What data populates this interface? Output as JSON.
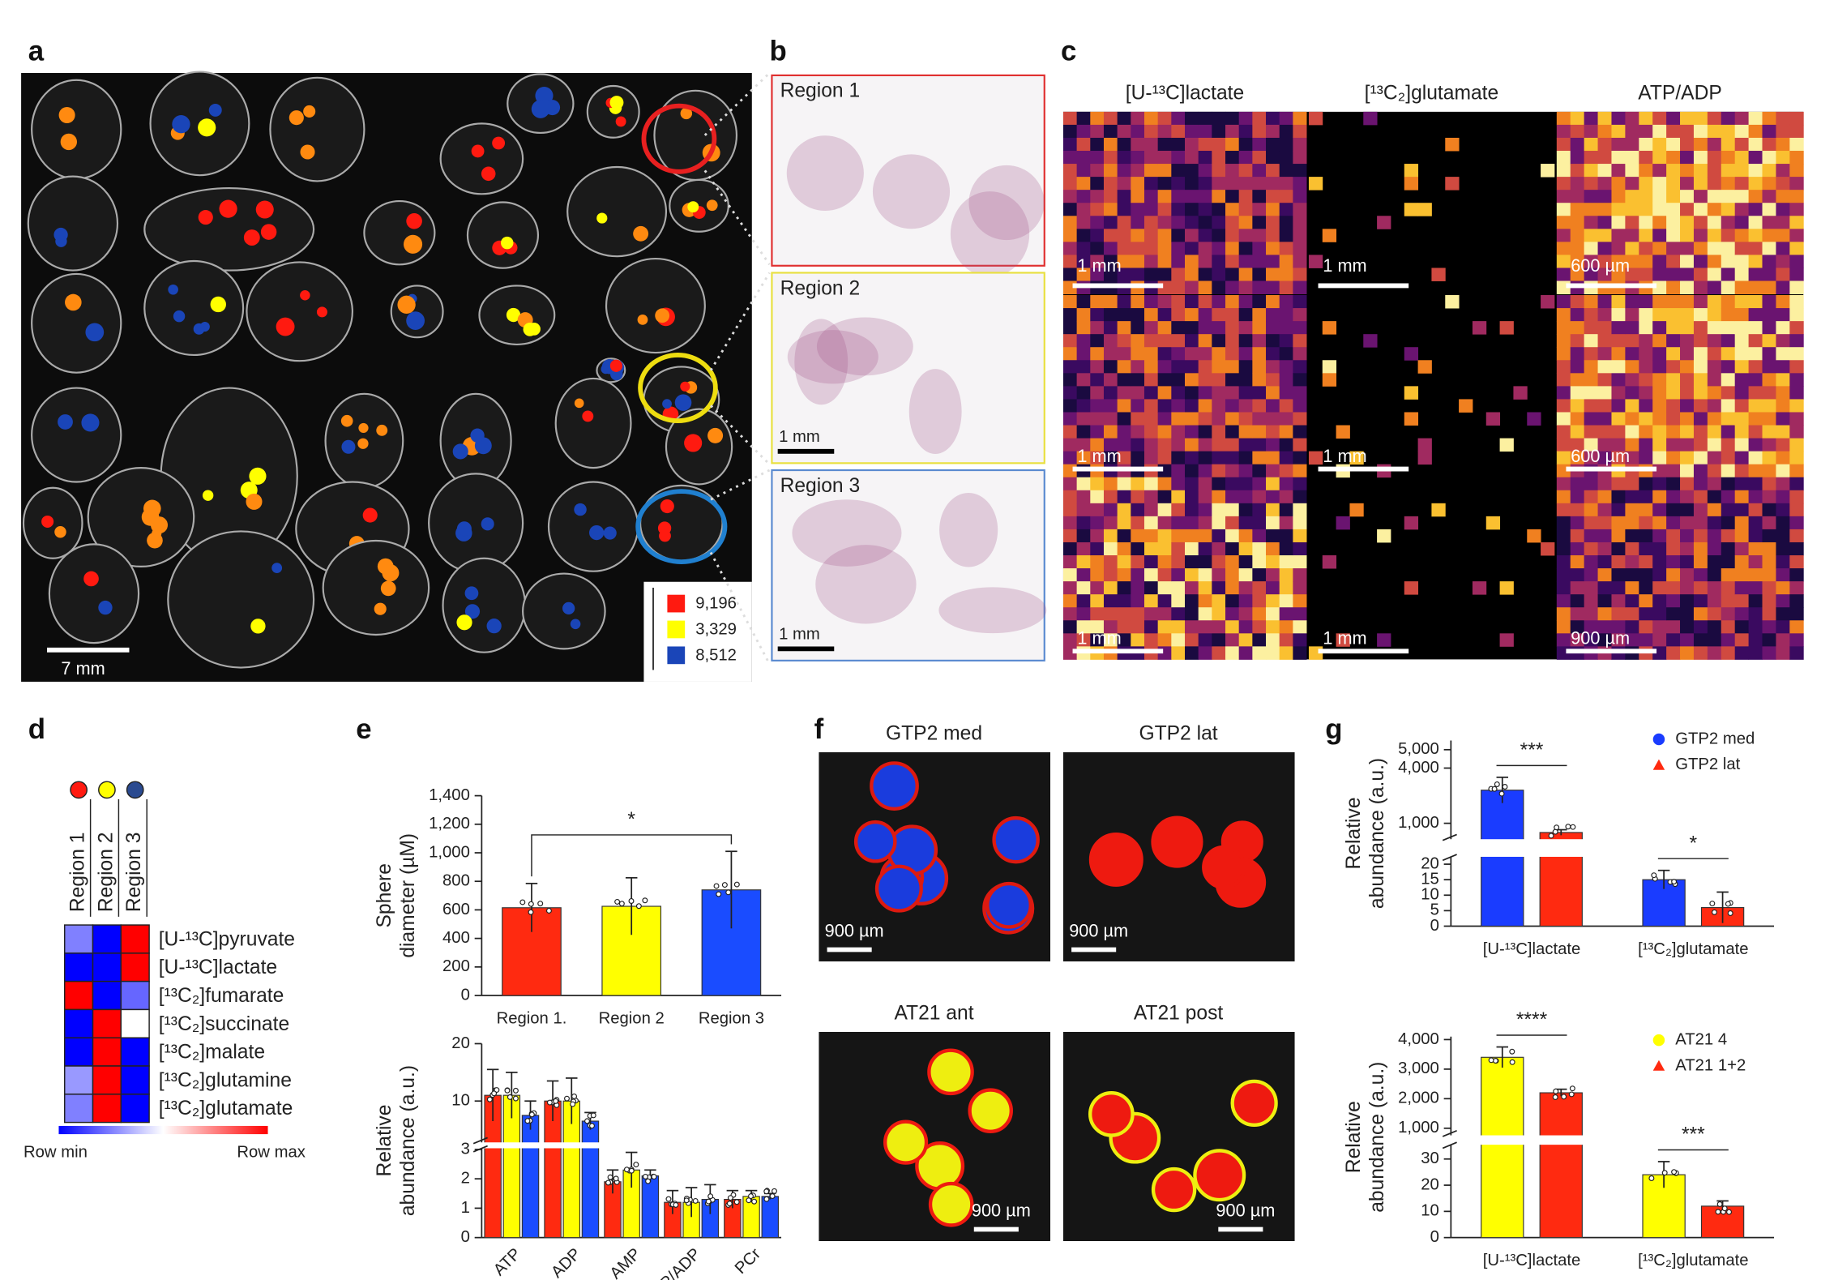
{
  "panel_labels": [
    "a",
    "b",
    "c",
    "d",
    "e",
    "f",
    "g"
  ],
  "panel_a": {
    "scale_bar": "7 mm",
    "legend": [
      {
        "label": "9,196",
        "color": "#ff1a10"
      },
      {
        "label": "3,329",
        "color": "#ffff00"
      },
      {
        "label": "8,512",
        "color": "#1a45b8"
      }
    ]
  },
  "panel_b": {
    "regions": [
      {
        "title": "Region 1",
        "color": "#e03030"
      },
      {
        "title": "Region 2",
        "color": "#e8e040",
        "scale_bar": "1 mm"
      },
      {
        "title": "Region 3",
        "color": "#5a8ad0",
        "scale_bar": "1 mm"
      }
    ]
  },
  "panel_c": {
    "columns": [
      "[U-¹³C]lactate",
      "[¹³C₂]glutamate",
      "ATP/ADP"
    ],
    "scale_bars": [
      [
        "1 mm",
        "1 mm",
        "600 µm"
      ],
      [
        "1 mm",
        "1 mm",
        "600 µm"
      ],
      [
        "1 mm",
        "1 mm",
        "900 µm"
      ]
    ]
  },
  "panel_f": {
    "images": [
      {
        "title": "GTP2 med",
        "scale_bar": "900 µm"
      },
      {
        "title": "GTP2 lat",
        "scale_bar": "900 µm"
      },
      {
        "title": "AT21 ant",
        "scale_bar": "900 µm"
      },
      {
        "title": "AT21 post",
        "scale_bar": "900 µm"
      }
    ]
  },
  "chart_data": [
    {
      "type": "heatmap",
      "columns": [
        "Region 1",
        "Region 2",
        "Region 3"
      ],
      "column_colors": [
        "#ff1a10",
        "#ffff00",
        "#2a4a90"
      ],
      "rows": [
        "[U-¹³C]pyruvate",
        "[U-¹³C]lactate",
        "[¹³C₂]fumarate",
        "[¹³C₂]succinate",
        "[¹³C₂]malate",
        "[¹³C₂]glutamine",
        "[¹³C₂]glutamate"
      ],
      "values": [
        [
          -0.5,
          -1,
          1
        ],
        [
          -1,
          -1,
          1
        ],
        [
          1,
          -1,
          -0.6
        ],
        [
          -1,
          1,
          0
        ],
        [
          -1,
          1,
          -1
        ],
        [
          -0.4,
          1,
          -1
        ],
        [
          -0.5,
          1,
          -1
        ]
      ],
      "legend_min": "Row min",
      "legend_max": "Row max"
    },
    {
      "type": "bar",
      "ylabel": [
        "Sphere",
        "diameter (µM)"
      ],
      "categories": [
        "Region 1.",
        "Region 2",
        "Region 3"
      ],
      "values": [
        615,
        625,
        740
      ],
      "errors": [
        170,
        200,
        270
      ],
      "colors": [
        "#ff2a10",
        "#ffff00",
        "#1a4cff"
      ],
      "significance": "*",
      "segments": [
        {
          "ylim": [
            0,
            1400
          ],
          "yticks": [
            0,
            200,
            400,
            600,
            800,
            {
              "value": 1000,
              "label": "1,000"
            },
            {
              "value": 1200,
              "label": "1,200"
            },
            {
              "value": 1400,
              "label": "1,400"
            }
          ]
        }
      ]
    },
    {
      "type": "bar",
      "ylabel": [
        "Relative",
        "abundance (a.u.)"
      ],
      "categories": [
        "ATP",
        "ADP",
        "AMP",
        "ATP/ADP",
        "PCr"
      ],
      "rotate_labels": true,
      "series": [
        {
          "color": "#ff2a10",
          "values": [
            11,
            10,
            1.9,
            1.2,
            1.3
          ],
          "errors": [
            4.5,
            3.5,
            0.4,
            0.4,
            0.3
          ]
        },
        {
          "color": "#ffff00",
          "values": [
            11,
            10,
            2.3,
            1.2,
            1.4
          ],
          "errors": [
            4,
            4,
            0.6,
            0.5,
            0.2
          ]
        },
        {
          "color": "#1a4cff",
          "values": [
            7.5,
            6.5,
            2.1,
            1.3,
            1.4
          ],
          "errors": [
            2.5,
            1.5,
            0.2,
            0.5,
            0.1
          ]
        }
      ],
      "segments": [
        {
          "ylim": [
            0,
            3
          ],
          "yticks": [
            0,
            1,
            2,
            3
          ]
        },
        {
          "ylim": [
            3,
            20
          ],
          "yticks": [
            10,
            20
          ]
        }
      ]
    },
    {
      "type": "bar",
      "ylabel": [
        "Relative",
        "abundance (a.u.)"
      ],
      "categories": [
        "[U-¹³C]lactate",
        "[¹³C₂]glutamate"
      ],
      "series": [
        {
          "name": "GTP2 med",
          "color": "#1a3cff",
          "marker": "circle",
          "values": [
            2800,
            15
          ],
          "errors": [
            700,
            3
          ]
        },
        {
          "name": "GTP2 lat",
          "color": "#ff2a10",
          "marker": "triangle",
          "values": [
            500,
            6
          ],
          "errors": [
            150,
            5
          ]
        }
      ],
      "significance": [
        "***",
        "*"
      ],
      "segments": [
        {
          "ylim": [
            0,
            22
          ],
          "yticks": [
            0,
            5,
            10,
            15,
            20
          ]
        },
        {
          "ylim": [
            200,
            5500
          ],
          "yticks": [
            {
              "value": 1000,
              "label": "1,000"
            },
            {
              "value": 4000,
              "label": "4,000"
            },
            {
              "value": 5000,
              "label": "5,000"
            }
          ]
        }
      ]
    },
    {
      "type": "bar",
      "ylabel": [
        "Relative",
        "abundance (a.u.)"
      ],
      "categories": [
        "[U-¹³C]lactate",
        "[¹³C₂]glutamate"
      ],
      "series": [
        {
          "name": "AT21 4",
          "color": "#ffff00",
          "marker": "circle",
          "values": [
            3400,
            24
          ],
          "errors": [
            350,
            5
          ]
        },
        {
          "name": "AT21 1+2",
          "color": "#ff2a10",
          "marker": "triangle",
          "values": [
            2200,
            12
          ],
          "errors": [
            120,
            2
          ]
        }
      ],
      "significance": [
        "****",
        "***"
      ],
      "segments": [
        {
          "ylim": [
            0,
            35
          ],
          "yticks": [
            0,
            10,
            20,
            30
          ]
        },
        {
          "ylim": [
            800,
            4100
          ],
          "yticks": [
            {
              "value": 1000,
              "label": "1,000"
            },
            {
              "value": 2000,
              "label": "2,000"
            },
            {
              "value": 3000,
              "label": "3,000"
            },
            {
              "value": 4000,
              "label": "4,000"
            }
          ]
        }
      ]
    }
  ]
}
